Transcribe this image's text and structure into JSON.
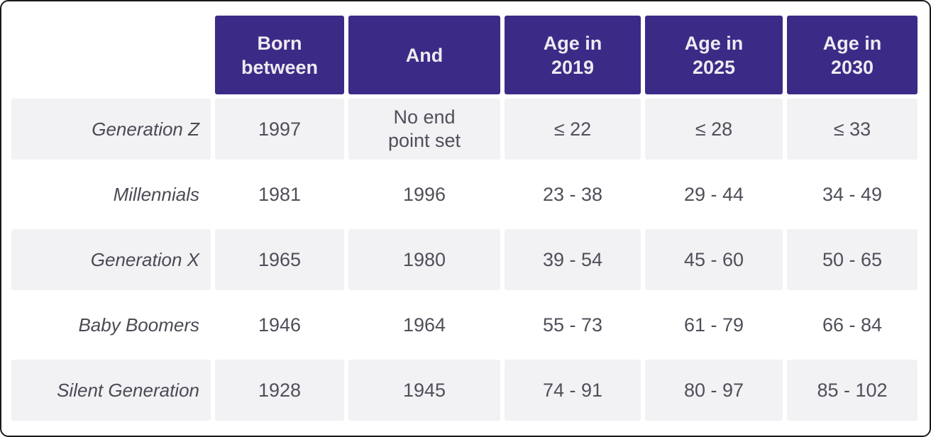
{
  "chart_data": {
    "type": "table",
    "columns": [
      "Born between",
      "And",
      "Age in 2019",
      "Age in 2025",
      "Age in 2030"
    ],
    "row_labels": [
      "Generation Z",
      "Millennials",
      "Generation X",
      "Baby Boomers",
      "Silent Generation"
    ],
    "rows": [
      [
        "1997",
        "No end point set",
        "≤ 22",
        "≤ 28",
        "≤ 33"
      ],
      [
        "1981",
        "1996",
        "23 - 38",
        "29 - 44",
        "34 - 49"
      ],
      [
        "1965",
        "1980",
        "39 - 54",
        "45 - 60",
        "50 - 65"
      ],
      [
        "1946",
        "1964",
        "55 - 73",
        "61 - 79",
        "66 - 84"
      ],
      [
        "1928",
        "1945",
        "74 - 91",
        "80 - 97",
        "85 - 102"
      ]
    ]
  },
  "table": {
    "header_lines": [
      [
        "Born",
        "between"
      ],
      [
        "And"
      ],
      [
        "Age in",
        "2019"
      ],
      [
        "Age in",
        "2025"
      ],
      [
        "Age in",
        "2030"
      ]
    ]
  },
  "colors": {
    "header_bg": "#3C2A87",
    "header_text": "#EFEAEF",
    "row_alt_bg": "#F2F1F4",
    "row_bg": "#FFFFFF",
    "body_text": "#514E59",
    "label_text": "#4B4953"
  }
}
